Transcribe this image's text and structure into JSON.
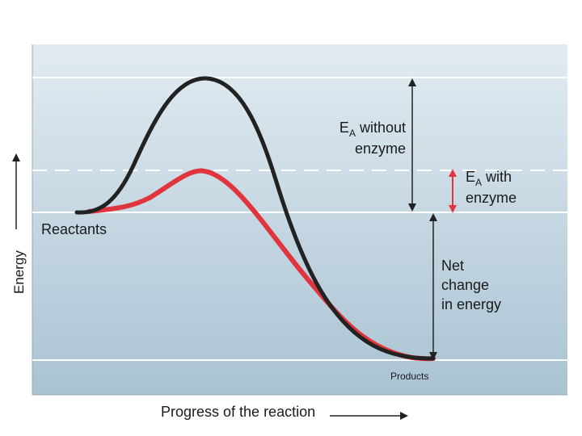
{
  "labels": {
    "ea_without_letter": "E",
    "ea_without_sub": "A",
    "ea_without_rest": " without",
    "ea_without_line2": "enzyme",
    "ea_with_letter": "E",
    "ea_with_sub": "A",
    "ea_with_rest": " with",
    "ea_with_line2": "enzyme",
    "reactants": "Reactants",
    "products": "Products",
    "net_line1": "Net",
    "net_line2": "change",
    "net_line3": "in energy",
    "y_axis": "Energy",
    "x_axis": "Progress of the reaction"
  },
  "colors": {
    "background_top": "#e2ebf1",
    "background_bottom": "#a9c3d3",
    "curve_without_enzyme": "#222222",
    "curve_with_enzyme": "#e0343e",
    "arrow_black": "#222222",
    "arrow_red": "#e0343e",
    "guide_lines": "#ffffff"
  }
}
